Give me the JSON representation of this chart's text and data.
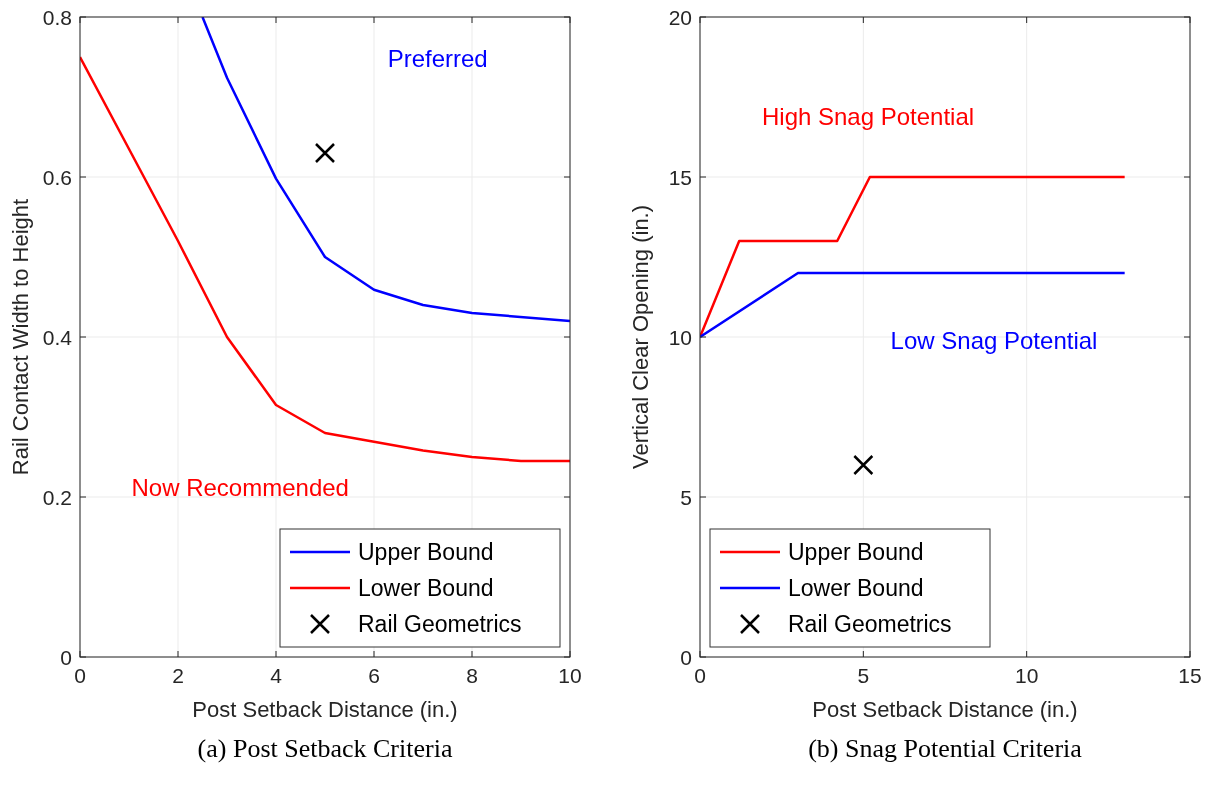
{
  "chart_data": [
    {
      "type": "line",
      "title": "(a) Post Setback Criteria",
      "xlabel": "Post Setback Distance (in.)",
      "ylabel": "Rail Contact Width to Height",
      "xlim": [
        0,
        10
      ],
      "ylim": [
        0,
        0.8
      ],
      "xticks": [
        0,
        2,
        4,
        6,
        8,
        10
      ],
      "yticks": [
        0,
        0.2,
        0.4,
        0.6,
        0.8
      ],
      "grid": true,
      "legend": "bottom right",
      "line_style": "solid",
      "series": [
        {
          "name": "Upper Bound",
          "color": "#0000ff",
          "x": [
            2.5,
            3,
            4,
            5,
            6,
            7,
            8,
            10
          ],
          "values": [
            0.8,
            0.724,
            0.598,
            0.5,
            0.459,
            0.44,
            0.43,
            0.42
          ]
        },
        {
          "name": "Lower Bound",
          "color": "#ff0000",
          "x": [
            0,
            1,
            2,
            3,
            4,
            5,
            6,
            7,
            8,
            9,
            10
          ],
          "values": [
            0.75,
            0.635,
            0.52,
            0.4,
            0.315,
            0.28,
            0.269,
            0.258,
            0.25,
            0.245,
            0.245
          ]
        },
        {
          "name": "Rail Geometrics",
          "type": "scatter",
          "marker": "cross",
          "color": "#000000",
          "x": [
            5
          ],
          "values": [
            0.63
          ]
        }
      ],
      "annotations": [
        "Preferred",
        "Now Recommended"
      ]
    },
    {
      "type": "line",
      "title": "(b) Snag Potential Criteria",
      "xlabel": "Post Setback Distance (in.)",
      "ylabel": "Vertical Clear Opening (in.)",
      "xlim": [
        0,
        15
      ],
      "ylim": [
        0,
        20
      ],
      "xticks": [
        0,
        5,
        10,
        15
      ],
      "yticks": [
        0,
        5,
        10,
        15,
        20
      ],
      "grid": true,
      "legend": "bottom left",
      "line_style": "solid",
      "series": [
        {
          "name": "Upper Bound",
          "color": "#ff0000",
          "x": [
            0,
            1.2,
            4.2,
            5.2,
            13
          ],
          "values": [
            10,
            13,
            13,
            15,
            15
          ]
        },
        {
          "name": "Lower Bound",
          "color": "#0000ff",
          "x": [
            0,
            3,
            13
          ],
          "values": [
            10,
            12,
            12
          ]
        },
        {
          "name": "Rail Geometrics",
          "type": "scatter",
          "marker": "cross",
          "color": "#000000",
          "x": [
            5
          ],
          "values": [
            6
          ]
        }
      ],
      "annotations": [
        "High Snag Potential",
        "Low Snag Potential"
      ]
    }
  ]
}
